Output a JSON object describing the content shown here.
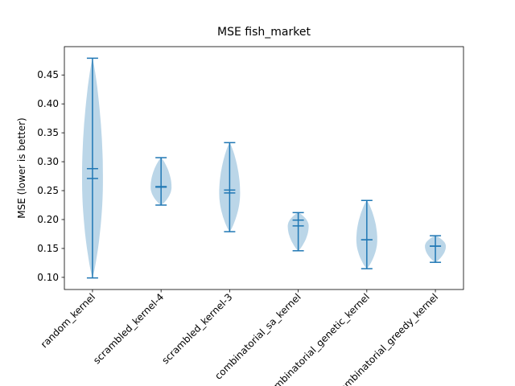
{
  "chart_data": {
    "type": "violin",
    "title": "MSE fish_market",
    "y_label": "MSE (lower is better)",
    "categories": [
      "random_kernel",
      "scrambled_kernel-4",
      "scrambled_kernel-3",
      "combinatorial_sa_kernel",
      "combinatorial_genetic_kernel",
      "combinatorial_greedy_kernel"
    ],
    "max": [
      0.479,
      0.307,
      0.333,
      0.212,
      0.233,
      0.172
    ],
    "min": [
      0.099,
      0.225,
      0.179,
      0.146,
      0.115,
      0.126
    ],
    "mean": [
      0.288,
      0.257,
      0.251,
      0.199,
      0.165,
      0.154
    ],
    "median": [
      0.271,
      0.256,
      0.246,
      0.189,
      0.165,
      0.154
    ],
    "color": "#1f77b4",
    "ylim": [
      0.079,
      0.499
    ],
    "yticks": [
      {
        "value": 0.1,
        "label": "0.10"
      },
      0.15,
      {
        "value": 0.2,
        "label": "0.20"
      },
      0.25,
      {
        "value": 0.3,
        "label": "0.30"
      },
      0.35,
      {
        "value": 0.4,
        "label": "0.40"
      },
      0.45
    ]
  }
}
